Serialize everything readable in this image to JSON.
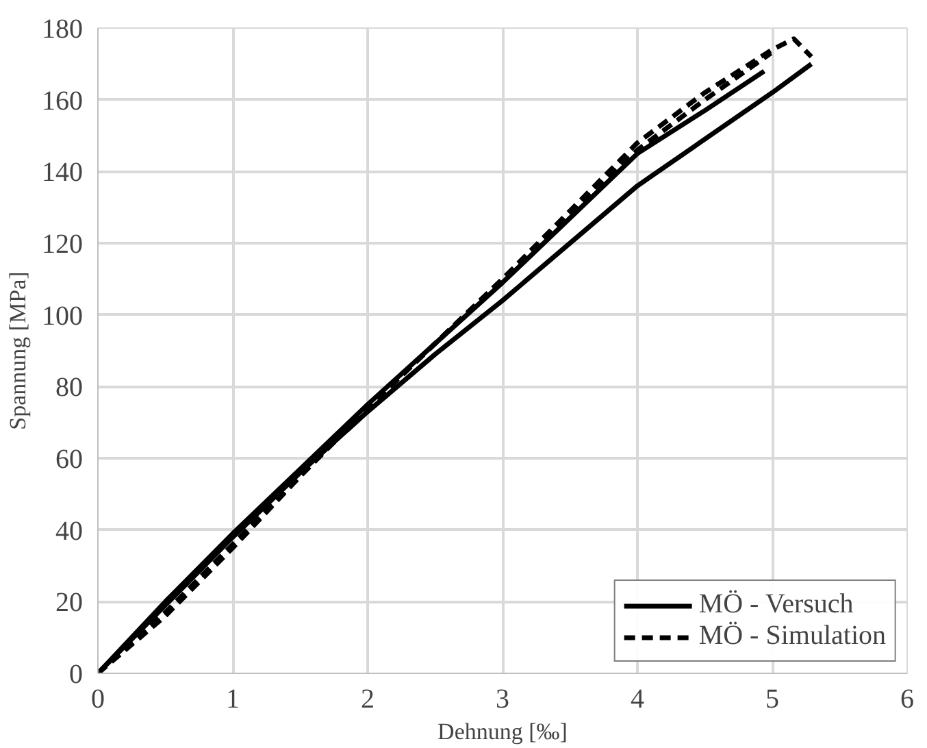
{
  "chart_data": {
    "type": "line",
    "xlabel": "Dehnung [‰]",
    "ylabel": "Spannung [MPa]",
    "xlim": [
      0,
      6
    ],
    "ylim": [
      0,
      180
    ],
    "xticks": [
      0,
      1,
      2,
      3,
      4,
      5,
      6
    ],
    "yticks": [
      0,
      20,
      40,
      60,
      80,
      100,
      120,
      140,
      160,
      180
    ],
    "grid": true,
    "legend": "bottom right",
    "marker": "none",
    "series": [
      {
        "name": "MÖ - Versuch",
        "color": "#000000",
        "line_style": "solid",
        "x": [
          0,
          0.5,
          1,
          1.5,
          2,
          2.5,
          3,
          3.5,
          4,
          4.5,
          4.94
        ],
        "values": [
          0,
          20,
          39,
          57,
          75,
          92,
          109,
          127,
          145,
          157,
          168
        ]
      },
      {
        "color": "#000000",
        "line_style": "solid",
        "x": [
          0,
          0.5,
          1,
          1.5,
          2,
          2.5,
          3,
          3.5,
          4,
          4.5,
          5,
          5.29
        ],
        "values": [
          0,
          19,
          38,
          56,
          73,
          89,
          104,
          120,
          136,
          149,
          162,
          170
        ]
      },
      {
        "name": "MÖ - Simulation",
        "color": "#000000",
        "line_style": "dashed",
        "x": [
          0,
          0.5,
          1,
          1.5,
          2,
          2.5,
          3,
          3.5,
          4,
          4.5,
          5,
          5.16,
          5.29
        ],
        "values": [
          0,
          16,
          35,
          55,
          74,
          92,
          110,
          129,
          148,
          162,
          174,
          177,
          172
        ]
      },
      {
        "color": "#000000",
        "line_style": "dashed",
        "x": [
          0,
          0.5,
          1,
          1.5,
          2,
          2.5,
          3,
          3.5,
          4,
          4.5,
          4.99
        ],
        "values": [
          0,
          17,
          36,
          55,
          74,
          92,
          110,
          128,
          146,
          160,
          173
        ]
      }
    ]
  }
}
